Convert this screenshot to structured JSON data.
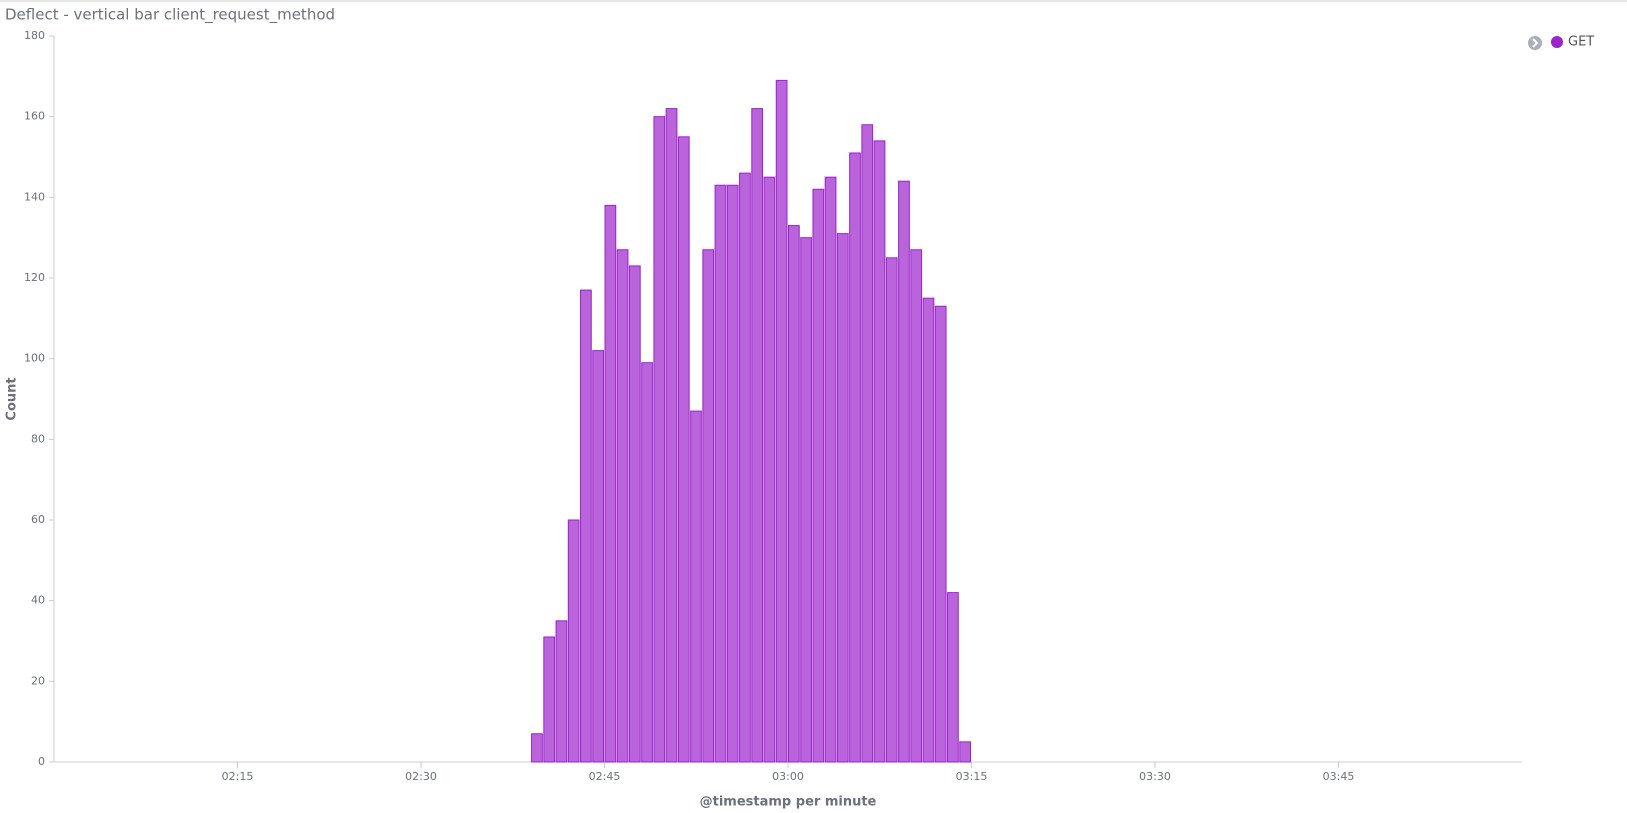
{
  "chart_data": {
    "type": "bar",
    "title": "Deflect - vertical bar client_request_method",
    "x_label": "@timestamp per minute",
    "y_label": "Count",
    "x": [
      "02:39",
      "02:40",
      "02:41",
      "02:42",
      "02:43",
      "02:44",
      "02:45",
      "02:46",
      "02:47",
      "02:48",
      "02:49",
      "02:50",
      "02:51",
      "02:52",
      "02:53",
      "02:54",
      "02:55",
      "02:56",
      "02:57",
      "02:58",
      "02:59",
      "03:00",
      "03:01",
      "03:02",
      "03:03",
      "03:04",
      "03:05",
      "03:06",
      "03:07",
      "03:08",
      "03:09",
      "03:10",
      "03:11",
      "03:12",
      "03:13",
      "03:14"
    ],
    "series": [
      {
        "name": "GET",
        "color": "#9b22cc",
        "values": [
          7,
          31,
          35,
          60,
          117,
          102,
          138,
          127,
          123,
          99,
          160,
          162,
          155,
          87,
          127,
          143,
          143,
          146,
          162,
          145,
          169,
          133,
          130,
          142,
          145,
          131,
          151,
          158,
          154,
          125,
          144,
          127,
          115,
          113,
          42,
          5
        ]
      }
    ],
    "xlim": [
      "02:00",
      "04:00"
    ],
    "xticks": [
      "02:15",
      "02:30",
      "02:45",
      "03:00",
      "03:15",
      "03:30",
      "03:45"
    ],
    "ylim": [
      0,
      180
    ],
    "yticks": [
      0,
      20,
      40,
      60,
      80,
      100,
      120,
      140,
      160,
      180
    ],
    "legend": "top-right",
    "grid": false
  }
}
